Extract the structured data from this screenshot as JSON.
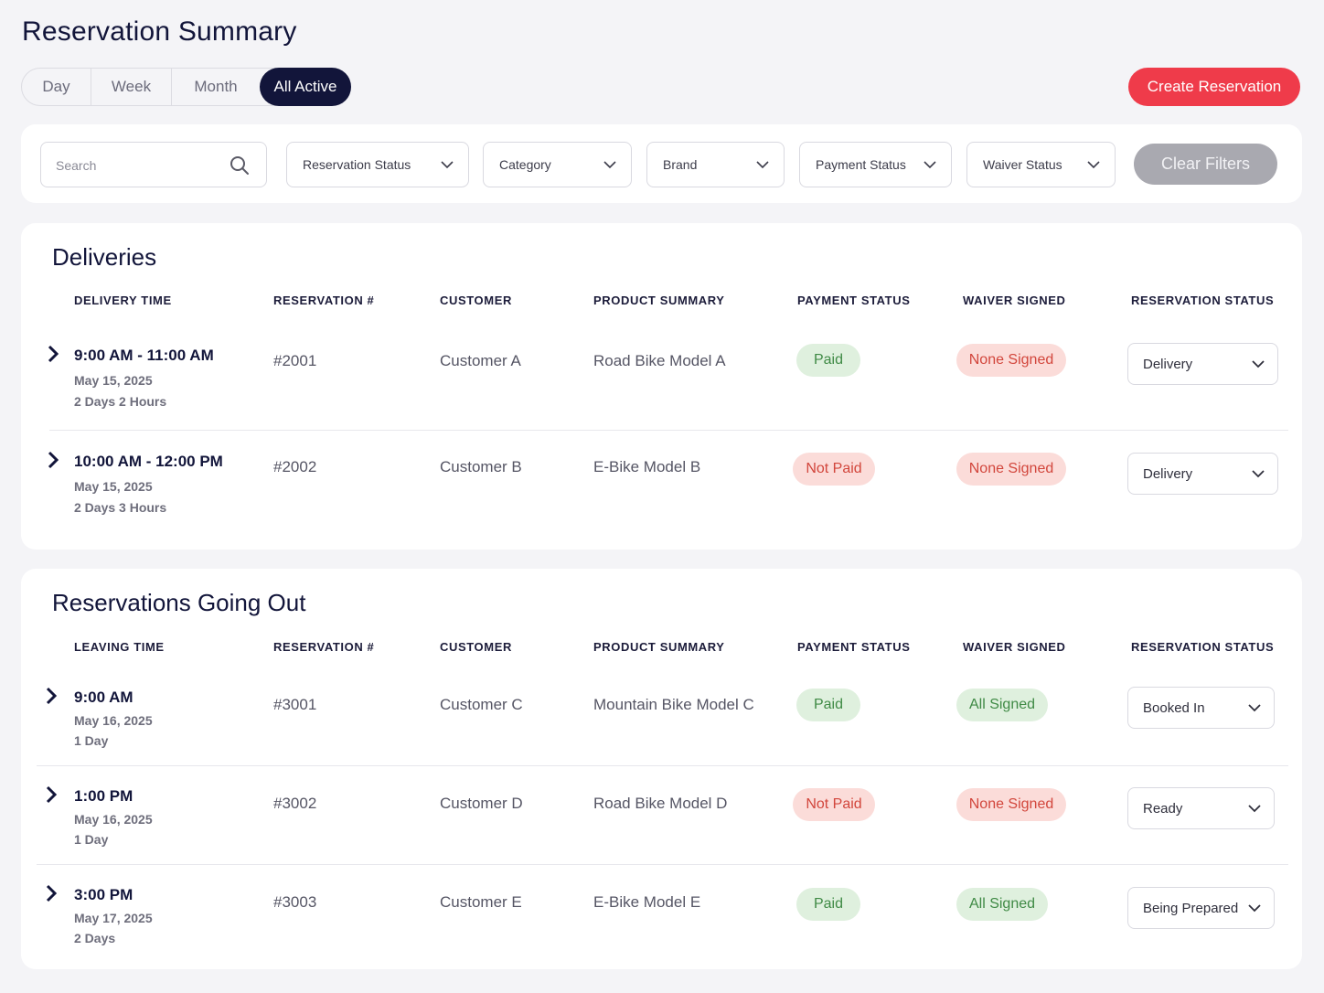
{
  "page_title": "Reservation Summary",
  "tabs": [
    {
      "label": "Day"
    },
    {
      "label": "Week"
    },
    {
      "label": "Month"
    },
    {
      "label": "All Active",
      "active": true
    }
  ],
  "create_button": "Create Reservation",
  "colors": {
    "accent": "#ef3b4a",
    "navy": "#12153a",
    "paid_bg": "#dff0de",
    "unpaid_bg": "#fbdcd9"
  },
  "filters": {
    "search_placeholder": "Search",
    "reservation_status": "Reservation Status",
    "category": "Category",
    "brand": "Brand",
    "payment_status": "Payment Status",
    "waiver_status": "Waiver Status",
    "clear": "Clear Filters"
  },
  "deliveries": {
    "title": "Deliveries",
    "columns": [
      "DELIVERY TIME",
      "RESERVATION #",
      "CUSTOMER",
      "PRODUCT SUMMARY",
      "PAYMENT STATUS",
      "WAIVER SIGNED",
      "RESERVATION STATUS"
    ],
    "rows": [
      {
        "time": "9:00 AM - 11:00 AM",
        "date": "May 15, 2025",
        "duration": "2 Days 2 Hours",
        "reservation": "#2001",
        "customer": "Customer A",
        "product": "Road Bike Model A",
        "payment": "Paid",
        "waiver": "None Signed",
        "status": "Delivery"
      },
      {
        "time": "10:00 AM - 12:00 PM",
        "date": "May 15, 2025",
        "duration": "2 Days 3 Hours",
        "reservation": "#2002",
        "customer": "Customer B",
        "product": "E-Bike Model B",
        "payment": "Not Paid",
        "waiver": "None Signed",
        "status": "Delivery"
      }
    ]
  },
  "going_out": {
    "title": "Reservations Going Out",
    "columns": [
      "LEAVING TIME",
      "RESERVATION #",
      "CUSTOMER",
      "PRODUCT SUMMARY",
      "PAYMENT STATUS",
      "WAIVER SIGNED",
      "RESERVATION STATUS"
    ],
    "rows": [
      {
        "time": "9:00 AM",
        "date": "May 16, 2025",
        "duration": "1 Day",
        "reservation": "#3001",
        "customer": "Customer C",
        "product": "Mountain Bike Model C",
        "payment": "Paid",
        "waiver": "All Signed",
        "status": "Booked In"
      },
      {
        "time": "1:00 PM",
        "date": "May 16, 2025",
        "duration": "1 Day",
        "reservation": "#3002",
        "customer": "Customer D",
        "product": "Road Bike Model D",
        "payment": "Not Paid",
        "waiver": "None Signed",
        "status": "Ready"
      },
      {
        "time": "3:00 PM",
        "date": "May 17, 2025",
        "duration": "2 Days",
        "reservation": "#3003",
        "customer": "Customer E",
        "product": "E-Bike Model E",
        "payment": "Paid",
        "waiver": "All Signed",
        "status": "Being Prepared"
      }
    ]
  }
}
